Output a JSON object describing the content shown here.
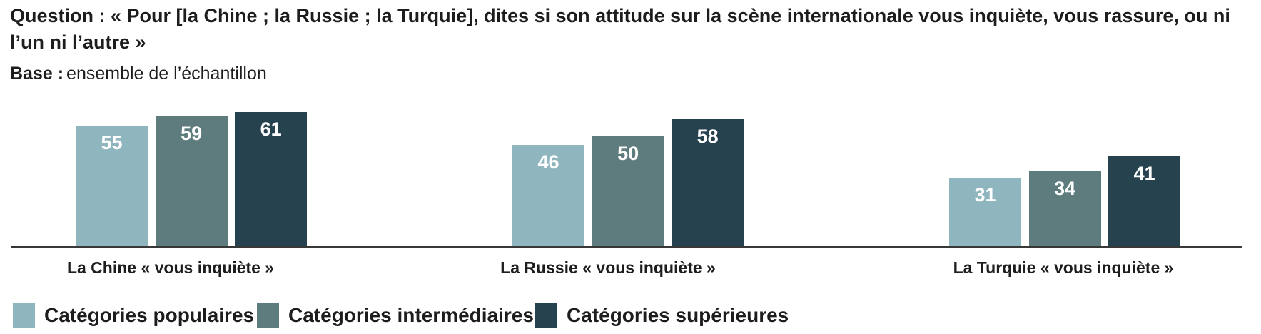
{
  "header": {
    "question_label": "Question :",
    "question_text": " « Pour [la Chine ; la Russie ; la Turquie], dites si son attitude sur la scène internationale vous inquiète, vous rassure, ou ni l’un ni l’autre »",
    "base_label": "Base :",
    "base_text": "ensemble de l’échantillon"
  },
  "chart_data": {
    "type": "bar",
    "categories": [
      "La Chine « vous inquiète »",
      "La Russie « vous inquiète »",
      "La Turquie « vous inquiète »"
    ],
    "series": [
      {
        "name": "Catégories populaires",
        "color": "#8FB5BE",
        "values": [
          55,
          46,
          31
        ]
      },
      {
        "name": "Catégories intermédiaires",
        "color": "#5E7C7E",
        "values": [
          59,
          50,
          34
        ]
      },
      {
        "name": "Catégories supérieures",
        "color": "#27424F",
        "values": [
          61,
          58,
          41
        ]
      }
    ],
    "ylim": [
      0,
      70
    ],
    "grid": false,
    "value_labels": "inside-top, white, bold",
    "legend_position": "bottom-left",
    "axis_line_color": "#383838",
    "value_label_color": "#FFFFFF",
    "text_color": "#1D1D1D"
  }
}
